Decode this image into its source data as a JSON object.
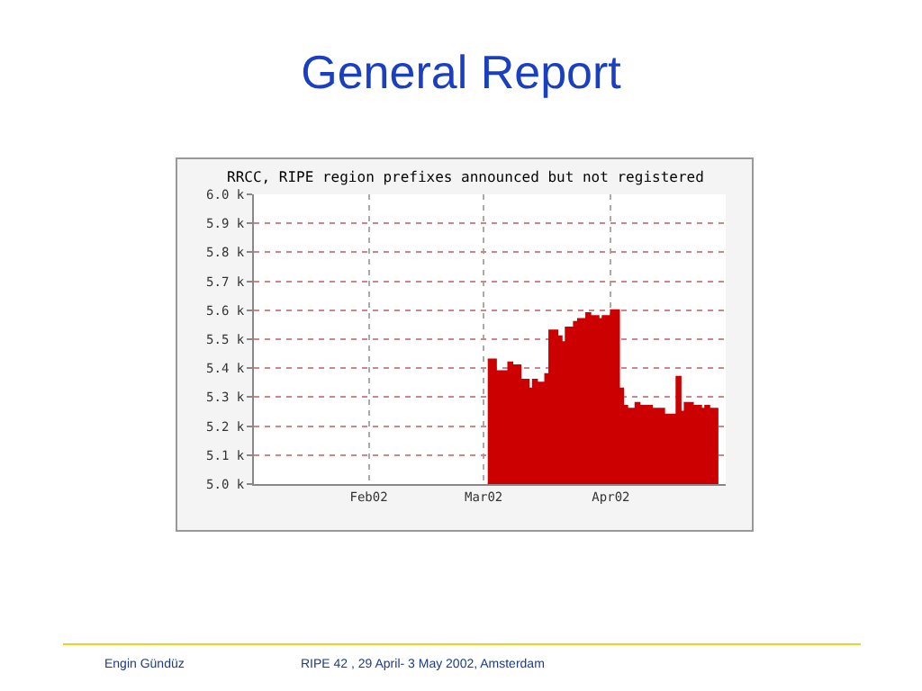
{
  "chart_data": {
    "type": "area",
    "title": "General Report",
    "subtitle": "RRCC, RIPE region prefixes announced but not registered",
    "annotations": [
      "Engin Gündüz",
      "RIPE 42 , 29 April- 3 May 2002, Amsterdam"
    ],
    "x": [
      "2002-03-02",
      "2002-03-04",
      "2002-03-07",
      "2002-03-08",
      "2002-03-10",
      "2002-03-12",
      "2002-03-13",
      "2002-03-14",
      "2002-03-16",
      "2002-03-17",
      "2002-03-19",
      "2002-03-20",
      "2002-03-21",
      "2002-03-23",
      "2002-03-24",
      "2002-03-26",
      "2002-03-27",
      "2002-03-29",
      "2002-03-30",
      "2002-04-01",
      "2002-04-03",
      "2002-04-04",
      "2002-04-05",
      "2002-04-07",
      "2002-04-08",
      "2002-04-11",
      "2002-04-14",
      "2002-04-17",
      "2002-04-18",
      "2002-04-19",
      "2002-04-21",
      "2002-04-23",
      "2002-04-24",
      "2002-04-25",
      "2002-04-27"
    ],
    "series": [
      {
        "color": "#cc0000",
        "values": [
          5.43,
          5.39,
          5.42,
          5.41,
          5.36,
          5.33,
          5.36,
          5.35,
          5.38,
          5.53,
          5.51,
          5.49,
          5.54,
          5.56,
          5.57,
          5.59,
          5.58,
          5.57,
          5.58,
          5.6,
          5.33,
          5.27,
          5.26,
          5.28,
          5.27,
          5.26,
          5.24,
          5.37,
          5.25,
          5.28,
          5.27,
          5.26,
          5.27,
          5.26,
          5.26
        ]
      }
    ],
    "xlim": [
      "2002-01-04",
      "2002-04-29"
    ],
    "xticks": [
      {
        "value": "2002-02-01",
        "label": "Feb02"
      },
      {
        "value": "2002-03-01",
        "label": "Mar02"
      },
      {
        "value": "2002-04-01",
        "label": "Apr02"
      }
    ],
    "ylim": [
      5.0,
      6.0
    ],
    "yticks": [
      {
        "value": 5.0,
        "label": "5.0 k"
      },
      {
        "value": 5.1,
        "label": "5.1 k"
      },
      {
        "value": 5.2,
        "label": "5.2 k"
      },
      {
        "value": 5.3,
        "label": "5.3 k"
      },
      {
        "value": 5.4,
        "label": "5.4 k"
      },
      {
        "value": 5.5,
        "label": "5.5 k"
      },
      {
        "value": 5.6,
        "label": "5.6 k"
      },
      {
        "value": 5.7,
        "label": "5.7 k"
      },
      {
        "value": 5.8,
        "label": "5.8 k"
      },
      {
        "value": 5.9,
        "label": "5.9 k"
      },
      {
        "value": 6.0,
        "label": "6.0 k"
      }
    ],
    "grid": true
  }
}
